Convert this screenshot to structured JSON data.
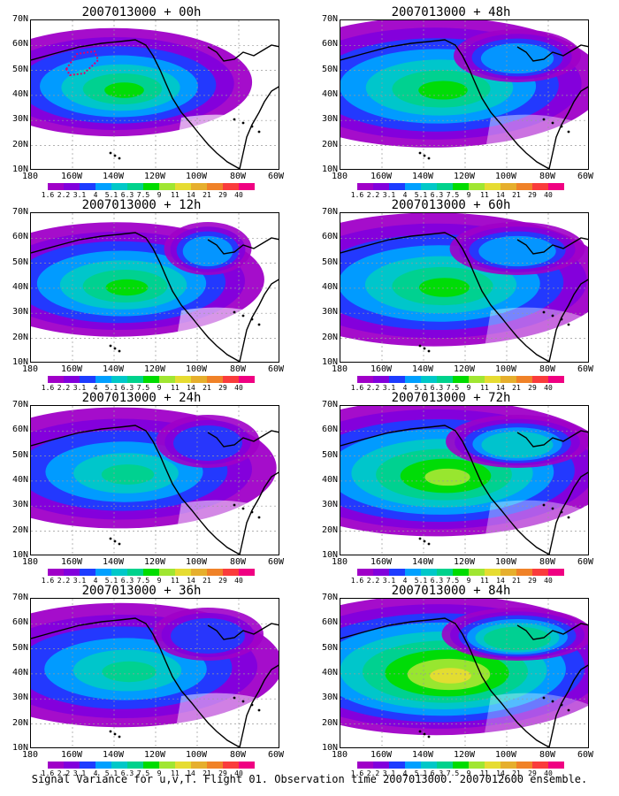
{
  "panels": [
    {
      "title": "2007013000 + 00h",
      "intensity": 0.55,
      "spread": 0.45,
      "col": 0,
      "row": 0,
      "marker": true
    },
    {
      "title": "2007013000 + 12h",
      "intensity": 0.5,
      "spread": 0.55,
      "col": 0,
      "row": 1,
      "marker": false
    },
    {
      "title": "2007013000 + 24h",
      "intensity": 0.45,
      "spread": 0.65,
      "col": 0,
      "row": 2,
      "marker": false
    },
    {
      "title": "2007013000 + 36h",
      "intensity": 0.45,
      "spread": 0.7,
      "col": 0,
      "row": 3,
      "marker": false
    },
    {
      "title": "2007013000 + 48h",
      "intensity": 0.5,
      "spread": 0.8,
      "col": 1,
      "row": 0,
      "marker": false
    },
    {
      "title": "2007013000 + 60h",
      "intensity": 0.55,
      "spread": 0.85,
      "col": 1,
      "row": 1,
      "marker": false
    },
    {
      "title": "2007013000 + 72h",
      "intensity": 0.7,
      "spread": 0.9,
      "col": 1,
      "row": 2,
      "marker": false
    },
    {
      "title": "2007013000 + 84h",
      "intensity": 0.85,
      "spread": 0.95,
      "col": 1,
      "row": 3,
      "marker": false
    }
  ],
  "y_labels": [
    "70N",
    "60N",
    "50N",
    "40N",
    "30N",
    "20N",
    "10N"
  ],
  "x_labels": [
    "180",
    "160W",
    "140W",
    "120W",
    "100W",
    "80W",
    "60W"
  ],
  "colorbar": {
    "labels": [
      "1.6",
      "2.2",
      "3.1",
      "4",
      "5.1",
      "6.3",
      "7.5",
      "9",
      "11",
      "14",
      "21",
      "29",
      "40"
    ],
    "colors": [
      "#a000c8",
      "#8200dc",
      "#1e3cff",
      "#00a0ff",
      "#00c8c8",
      "#00d28c",
      "#00dc00",
      "#a0e632",
      "#e6dc32",
      "#e6af2d",
      "#f08228",
      "#fa3c3c",
      "#f00082"
    ]
  },
  "caption": "Signal Variance for u,v,T. Flight 01. Observation time 2007013000. 2007012600 ensemble."
}
